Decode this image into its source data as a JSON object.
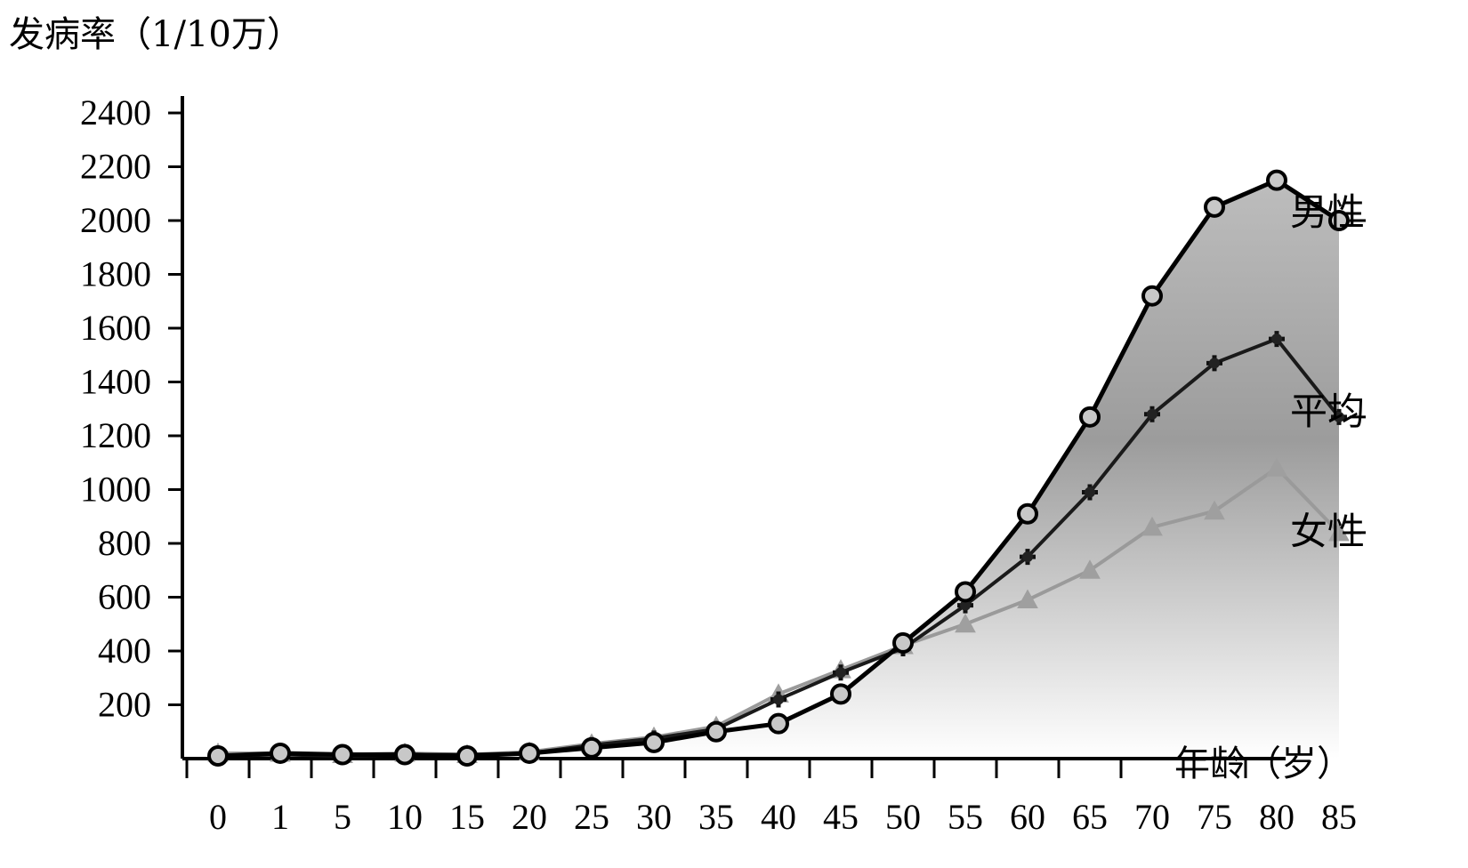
{
  "chart_data": {
    "type": "line",
    "ylabel": "发病率（1/10万）",
    "xlabel": "年龄（岁）",
    "categories": [
      "0",
      "1",
      "5",
      "10",
      "15",
      "20",
      "25",
      "30",
      "35",
      "40",
      "45",
      "50",
      "55",
      "60",
      "65",
      "70",
      "75",
      "80",
      "85"
    ],
    "y_ticks": [
      "200",
      "400",
      "600",
      "800",
      "1000",
      "1200",
      "1400",
      "1600",
      "1800",
      "2000",
      "2200",
      "2400"
    ],
    "ylim": [
      0,
      2400
    ],
    "grid": false,
    "legend": "line-end labels",
    "series": [
      {
        "name": "男性",
        "marker": "circle",
        "color": "#000000",
        "values": [
          10,
          20,
          15,
          15,
          10,
          20,
          40,
          60,
          100,
          130,
          240,
          430,
          620,
          910,
          1270,
          1720,
          2050,
          2150,
          2000
        ]
      },
      {
        "name": "平均",
        "marker": "star",
        "color": "#1a1a1a",
        "values": [
          10,
          15,
          10,
          15,
          15,
          20,
          50,
          75,
          110,
          220,
          320,
          410,
          570,
          750,
          990,
          1280,
          1470,
          1560,
          1270
        ]
      },
      {
        "name": "女性",
        "marker": "triangle",
        "color": "#9a9a9a",
        "values": [
          20,
          20,
          15,
          20,
          15,
          25,
          55,
          80,
          120,
          240,
          330,
          420,
          500,
          590,
          700,
          860,
          920,
          1080,
          840
        ]
      }
    ]
  }
}
